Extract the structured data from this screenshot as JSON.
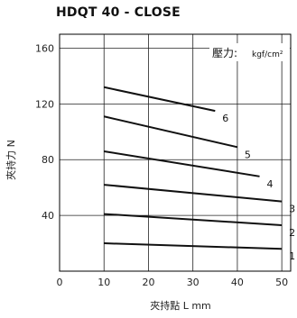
{
  "chart_data": {
    "type": "line",
    "title": "HDQT 40 - CLOSE",
    "xlabel": "夾持點 L mm",
    "ylabel": "夾持力 N",
    "xlim": [
      0,
      52
    ],
    "ylim": [
      0,
      170
    ],
    "x_ticks": [
      0,
      10,
      20,
      30,
      40,
      50
    ],
    "y_ticks": [
      40,
      80,
      120,
      160
    ],
    "grid": true,
    "legend_title": "壓力:",
    "legend_unit": "kgf/cm²",
    "legend_placement": "top-right",
    "series": [
      {
        "name": "1",
        "x": [
          10,
          50
        ],
        "y": [
          20,
          16
        ]
      },
      {
        "name": "2",
        "x": [
          10,
          50
        ],
        "y": [
          41,
          33
        ]
      },
      {
        "name": "3",
        "x": [
          10,
          50
        ],
        "y": [
          62,
          50
        ]
      },
      {
        "name": "4",
        "x": [
          10,
          45
        ],
        "y": [
          86,
          68
        ]
      },
      {
        "name": "5",
        "x": [
          10,
          40
        ],
        "y": [
          111,
          89
        ]
      },
      {
        "name": "6",
        "x": [
          10,
          35
        ],
        "y": [
          132,
          115
        ]
      }
    ]
  }
}
